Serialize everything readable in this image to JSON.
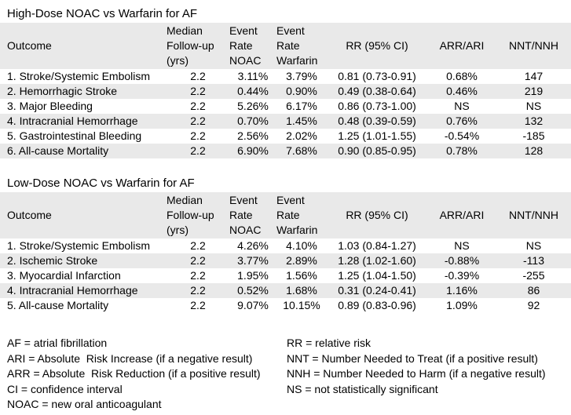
{
  "colors": {
    "background": "#ffffff",
    "row_stripe": "#e9e9e9",
    "text": "#000000"
  },
  "tables": [
    {
      "title": "High-Dose NOAC vs Warfarin for AF",
      "columns": [
        "Outcome",
        "Median\nFollow-up\n(yrs)",
        "Event\nRate\nNOAC",
        "Event\nRate\nWarfarin",
        "RR (95% CI)",
        "ARR/ARI",
        "NNT/NNH"
      ],
      "rows": [
        [
          "1. Stroke/Systemic Embolism",
          "2.2",
          "3.11%",
          "3.79%",
          "0.81 (0.73-0.91)",
          "0.68%",
          "147"
        ],
        [
          "2. Hemorrhagic Stroke",
          "2.2",
          "0.44%",
          "0.90%",
          "0.49 (0.38-0.64)",
          "0.46%",
          "219"
        ],
        [
          "3. Major Bleeding",
          "2.2",
          "5.26%",
          "6.17%",
          "0.86 (0.73-1.00)",
          "NS",
          "NS"
        ],
        [
          "4. Intracranial Hemorrhage",
          "2.2",
          "0.70%",
          "1.45%",
          "0.48 (0.39-0.59)",
          "0.76%",
          "132"
        ],
        [
          "5. Gastrointestinal Bleeding",
          "2.2",
          "2.56%",
          "2.02%",
          "1.25 (1.01-1.55)",
          "-0.54%",
          "-185"
        ],
        [
          "6. All-cause Mortality",
          "2.2",
          "6.90%",
          "7.68%",
          "0.90 (0.85-0.95)",
          "0.78%",
          "128"
        ]
      ]
    },
    {
      "title": "Low-Dose NOAC vs Warfarin for AF",
      "columns": [
        "Outcome",
        "Median\nFollow-up\n(yrs)",
        "Event\nRate\nNOAC",
        "Event\nRate\nWarfarin",
        "RR (95% CI)",
        "ARR/ARI",
        "NNT/NNH"
      ],
      "rows": [
        [
          "1. Stroke/Systemic Embolism",
          "2.2",
          "4.26%",
          "4.10%",
          "1.03 (0.84-1.27)",
          "NS",
          "NS"
        ],
        [
          "2. Ischemic Stroke",
          "2.2",
          "3.77%",
          "2.89%",
          "1.28 (1.02-1.60)",
          "-0.88%",
          "-113"
        ],
        [
          "3. Myocardial Infarction",
          "2.2",
          "1.95%",
          "1.56%",
          "1.25 (1.04-1.50)",
          "-0.39%",
          "-255"
        ],
        [
          "4. Intracranial Hemorrhage",
          "2.2",
          "0.52%",
          "1.68%",
          "0.31 (0.24-0.41)",
          "1.16%",
          "86"
        ],
        [
          "5. All-cause Mortality",
          "2.2",
          "9.07%",
          "10.15%",
          "0.89 (0.83-0.96)",
          "1.09%",
          "92"
        ]
      ]
    }
  ],
  "legend": {
    "left": [
      "AF = atrial fibrillation",
      "ARI = Absolute  Risk Increase (if a negative result)",
      "ARR = Absolute  Risk Reduction (if a positive result)",
      "CI = confidence interval",
      "NOAC = new oral anticoagulant"
    ],
    "right": [
      "RR = relative risk",
      "NNT = Number Needed to Treat (if a positive result)",
      "NNH = Number Needed to Harm (if a negative result)",
      "NS = not statistically significant"
    ]
  }
}
